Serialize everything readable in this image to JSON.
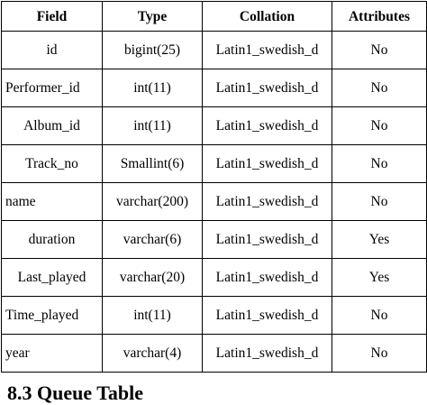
{
  "table": {
    "headers": [
      "Field",
      "Type",
      "Collation",
      "Attributes"
    ],
    "rows": [
      {
        "field": "id",
        "type": "bigint(25)",
        "collation": "Latin1_swedish_d",
        "attributes": "No"
      },
      {
        "field": "Performer_id",
        "type": "int(11)",
        "collation": "Latin1_swedish_d",
        "attributes": "No"
      },
      {
        "field": "Album_id",
        "type": "int(11)",
        "collation": "Latin1_swedish_d",
        "attributes": "No"
      },
      {
        "field": "Track_no",
        "type": "Smallint(6)",
        "collation": "Latin1_swedish_d",
        "attributes": "No"
      },
      {
        "field": "name",
        "type": "varchar(200)",
        "collation": "Latin1_swedish_d",
        "attributes": "No"
      },
      {
        "field": "duration",
        "type": "varchar(6)",
        "collation": "Latin1_swedish_d",
        "attributes": "Yes"
      },
      {
        "field": "Last_played",
        "type": "varchar(20)",
        "collation": "Latin1_swedish_d",
        "attributes": "Yes"
      },
      {
        "field": "Time_played",
        "type": "int(11)",
        "collation": "Latin1_swedish_d",
        "attributes": "No"
      },
      {
        "field": "year",
        "type": "varchar(4)",
        "collation": "Latin1_swedish_d",
        "attributes": "No"
      }
    ]
  },
  "section_heading": "8.3  Queue Table"
}
